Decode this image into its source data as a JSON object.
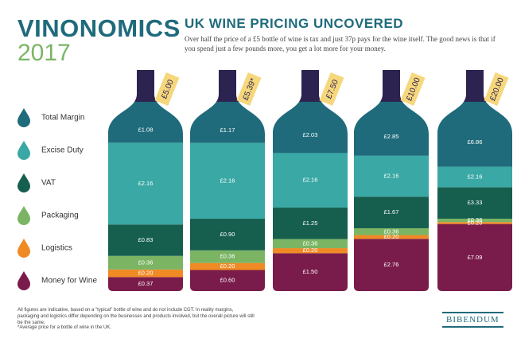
{
  "header": {
    "brand": "VINONOMICS",
    "year": "2017",
    "logo": "BIBENDUM"
  },
  "chart_data": {
    "type": "bottle",
    "title": "UK WINE PRICING UNCOVERED",
    "subtitle": "Over half the price of a £5 bottle of wine is tax and just 37p pays for the wine itself. The good news is that if you spend just a few pounds more, you get a lot more for your money.",
    "categories": [
      "£5.00",
      "£5.39*",
      "£7.50",
      "£10.00",
      "£20.00"
    ],
    "series": [
      {
        "name": "Total Margin",
        "color": "#1f6b7c",
        "values": [
          1.08,
          1.17,
          2.03,
          2.85,
          6.86
        ],
        "value_labels": [
          "£1.08",
          "£1.17",
          "£2.03",
          "£2.85",
          "£6.86"
        ]
      },
      {
        "name": "Excise Duty",
        "color": "#3aa8a4",
        "values": [
          2.16,
          2.16,
          2.16,
          2.16,
          2.16
        ],
        "value_labels": [
          "£2.16",
          "£2.16",
          "£2.16",
          "£2.16",
          "£2.16"
        ]
      },
      {
        "name": "VAT",
        "color": "#165f4f",
        "values": [
          0.83,
          0.9,
          1.25,
          1.67,
          3.33
        ],
        "value_labels": [
          "£0.83",
          "£0.90",
          "£1.25",
          "£1.67",
          "£3.33"
        ]
      },
      {
        "name": "Packaging",
        "color": "#7bb564",
        "values": [
          0.36,
          0.36,
          0.36,
          0.36,
          0.36
        ],
        "value_labels": [
          "£0.36",
          "£0.36",
          "£0.36",
          "£0.36",
          "£0.36"
        ]
      },
      {
        "name": "Logistics",
        "color": "#f08a25",
        "values": [
          0.2,
          0.2,
          0.2,
          0.2,
          0.2
        ],
        "value_labels": [
          "£0.20",
          "£0.20",
          "£0.20",
          "£0.20",
          "£0.20"
        ]
      },
      {
        "name": "Money for Wine",
        "color": "#7a1c4b",
        "values": [
          0.37,
          0.6,
          1.5,
          2.76,
          7.09
        ],
        "value_labels": [
          "£0.37",
          "£0.60",
          "£1.50",
          "£2.76",
          "£7.09"
        ]
      }
    ],
    "notes": [
      "All figures are indicative, based on a \"typical\" bottle of wine and do not include CGT. In reality margins, packaging and logistics differ depending on the businesses and products involved, but the overall picture will still be the same.",
      "*Average price for a bottle of wine in the UK."
    ]
  }
}
